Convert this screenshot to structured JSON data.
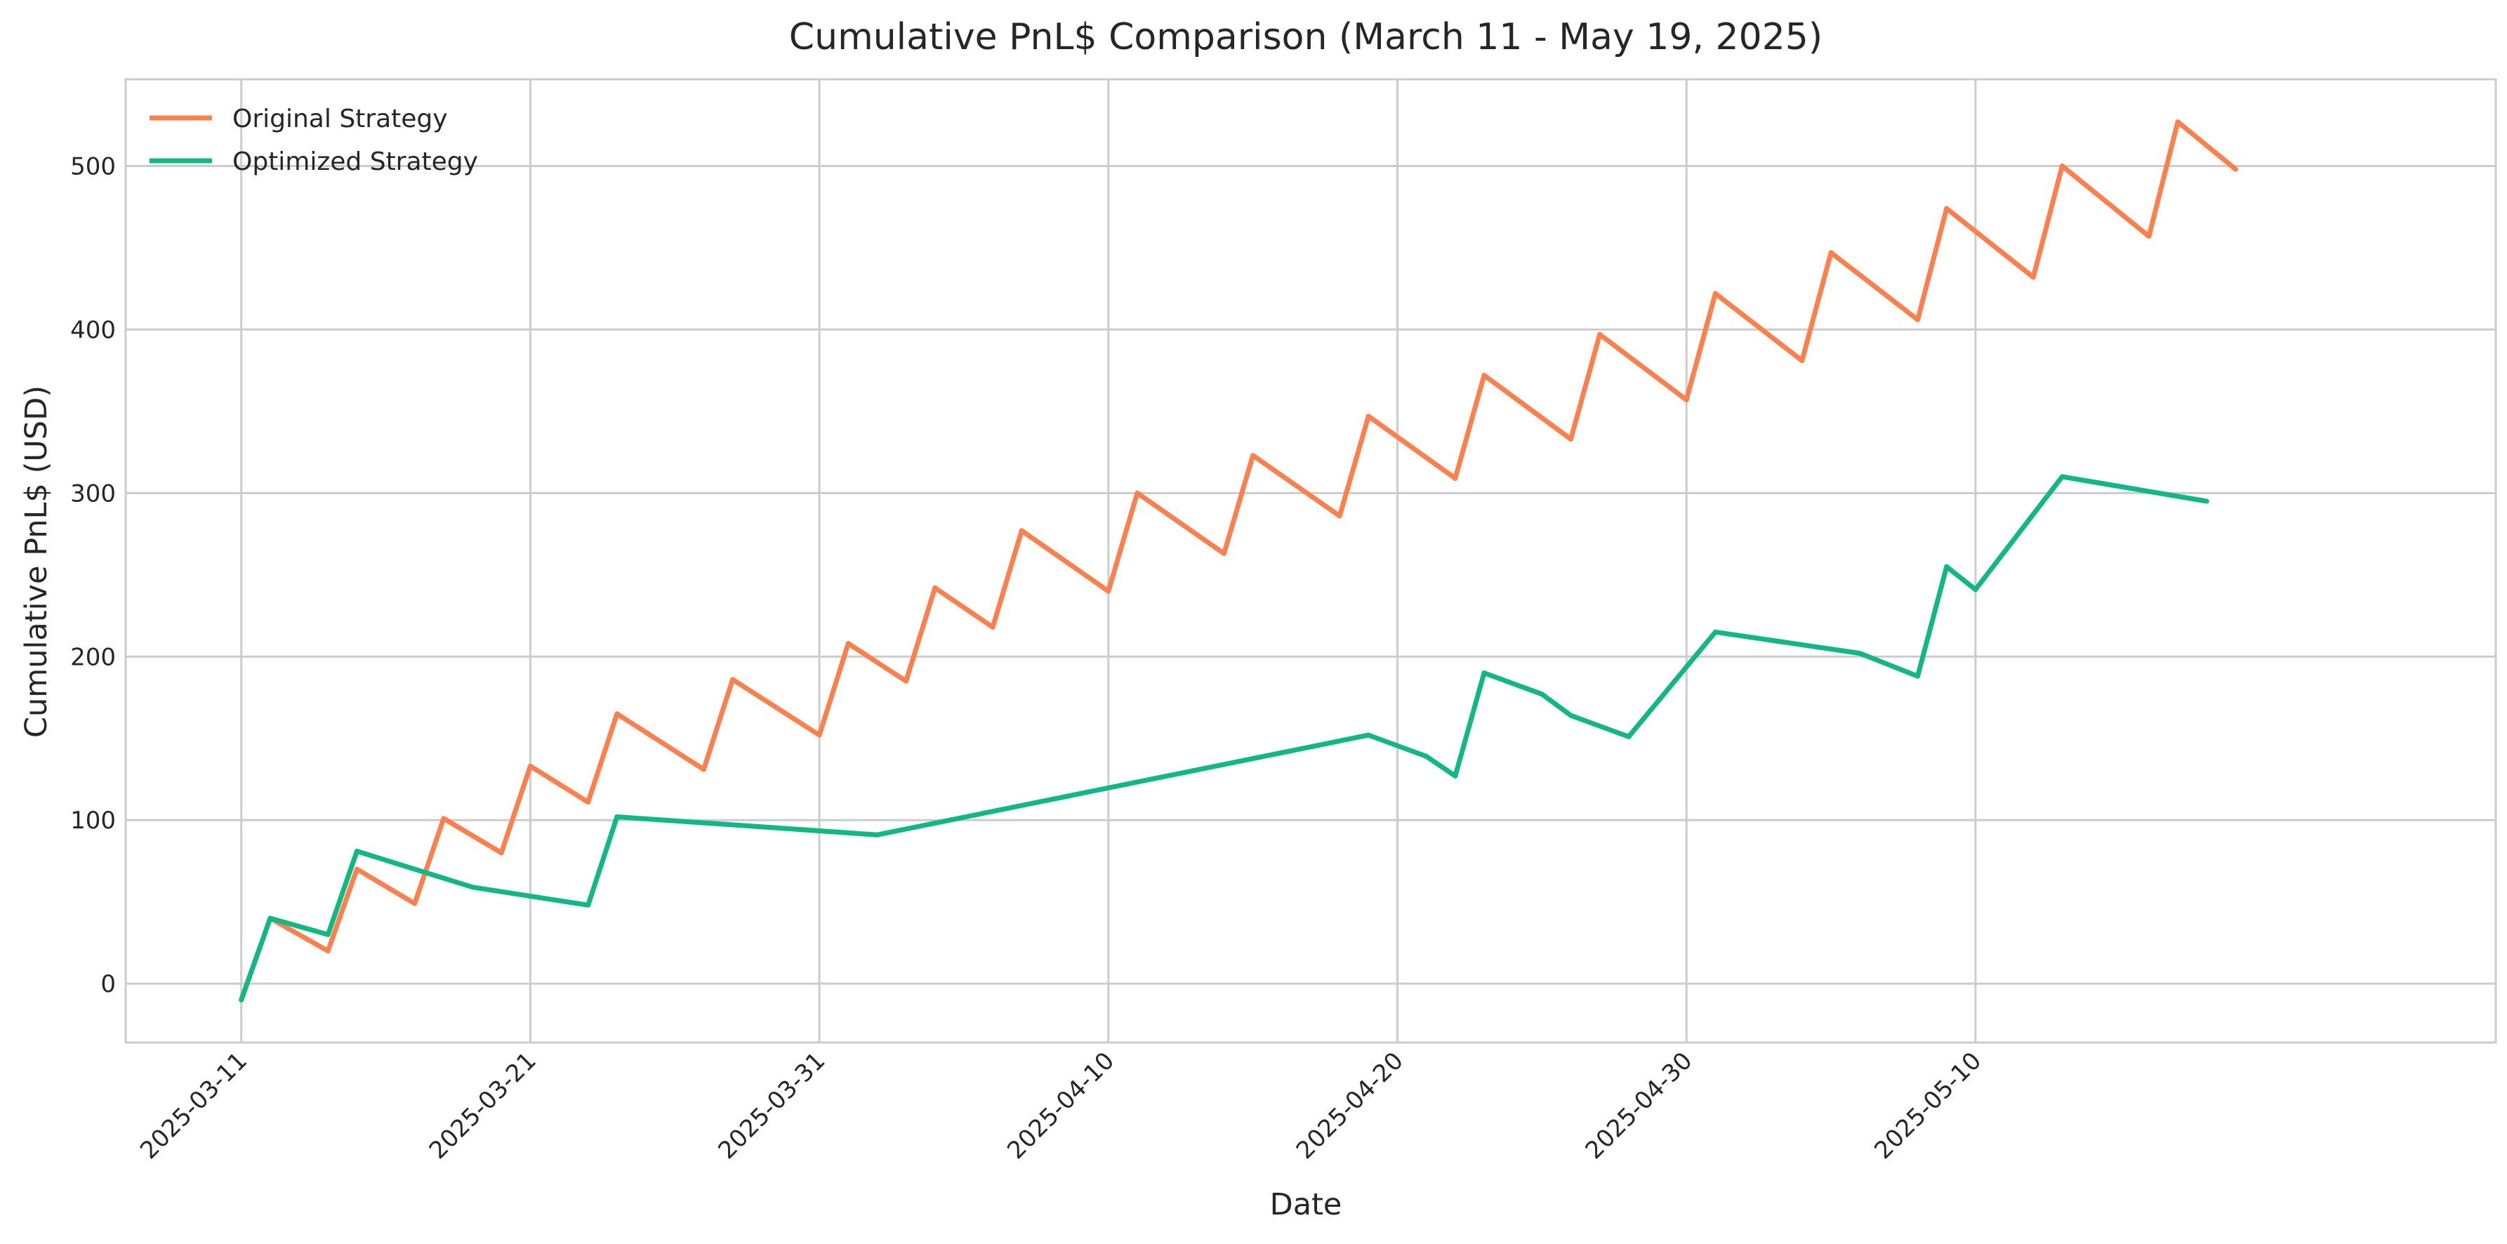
{
  "chart_data": {
    "type": "line",
    "title": "Cumulative PnL$ Comparison (March 11 - May 19, 2025)",
    "xlabel": "Date",
    "ylabel": "Cumulative PnL$ (USD)",
    "x_axis_type": "date",
    "xlim": [
      "2025-03-07",
      "2025-05-28"
    ],
    "ylim": [
      -36,
      553
    ],
    "x_ticks": [
      "2025-03-11",
      "2025-03-21",
      "2025-03-31",
      "2025-04-10",
      "2025-04-20",
      "2025-04-30",
      "2025-05-10"
    ],
    "y_ticks": [
      0,
      100,
      200,
      300,
      400,
      500
    ],
    "grid": true,
    "legend": "top-left",
    "series": [
      {
        "name": "Original Strategy",
        "color": "#fc7f4e",
        "points": [
          [
            "2025-03-11",
            -10
          ],
          [
            "2025-03-12",
            40
          ],
          [
            "2025-03-14",
            20
          ],
          [
            "2025-03-15",
            70
          ],
          [
            "2025-03-17",
            49
          ],
          [
            "2025-03-18",
            101
          ],
          [
            "2025-03-20",
            80
          ],
          [
            "2025-03-21",
            133
          ],
          [
            "2025-03-23",
            111
          ],
          [
            "2025-03-24",
            165
          ],
          [
            "2025-03-27",
            131
          ],
          [
            "2025-03-28",
            186
          ],
          [
            "2025-03-31",
            152
          ],
          [
            "2025-04-01",
            208
          ],
          [
            "2025-04-03",
            185
          ],
          [
            "2025-04-04",
            242
          ],
          [
            "2025-04-06",
            218
          ],
          [
            "2025-04-07",
            277
          ],
          [
            "2025-04-10",
            240
          ],
          [
            "2025-04-11",
            300
          ],
          [
            "2025-04-14",
            263
          ],
          [
            "2025-04-15",
            323
          ],
          [
            "2025-04-18",
            286
          ],
          [
            "2025-04-19",
            347
          ],
          [
            "2025-04-22",
            309
          ],
          [
            "2025-04-23",
            372
          ],
          [
            "2025-04-26",
            333
          ],
          [
            "2025-04-27",
            397
          ],
          [
            "2025-04-30",
            357
          ],
          [
            "2025-05-01",
            422
          ],
          [
            "2025-05-04",
            381
          ],
          [
            "2025-05-05",
            447
          ],
          [
            "2025-05-08",
            406
          ],
          [
            "2025-05-09",
            474
          ],
          [
            "2025-05-12",
            432
          ],
          [
            "2025-05-13",
            500
          ],
          [
            "2025-05-16",
            457
          ],
          [
            "2025-05-17",
            527
          ],
          [
            "2025-05-19",
            498
          ]
        ]
      },
      {
        "name": "Optimized Strategy",
        "color": "#12b882",
        "points": [
          [
            "2025-03-11",
            -10
          ],
          [
            "2025-03-12",
            40
          ],
          [
            "2025-03-14",
            30
          ],
          [
            "2025-03-15",
            81
          ],
          [
            "2025-03-19",
            59
          ],
          [
            "2025-03-23",
            48
          ],
          [
            "2025-03-24",
            102
          ],
          [
            "2025-04-02",
            91
          ],
          [
            "2025-04-19",
            152
          ],
          [
            "2025-04-21",
            139
          ],
          [
            "2025-04-22",
            127
          ],
          [
            "2025-04-23",
            190
          ],
          [
            "2025-04-25",
            177
          ],
          [
            "2025-04-26",
            164
          ],
          [
            "2025-04-28",
            151
          ],
          [
            "2025-05-01",
            215
          ],
          [
            "2025-05-06",
            202
          ],
          [
            "2025-05-08",
            188
          ],
          [
            "2025-05-09",
            255
          ],
          [
            "2025-05-10",
            241
          ],
          [
            "2025-05-13",
            310
          ],
          [
            "2025-05-18",
            295
          ]
        ]
      }
    ]
  }
}
